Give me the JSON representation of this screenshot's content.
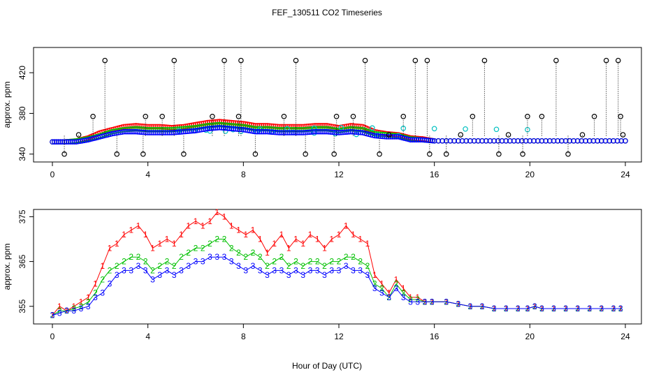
{
  "title": "FEF_130511  CO2 Timeseries",
  "xlabel": "Hour of Day (UTC)",
  "chart_data": [
    {
      "type": "scatter",
      "panel": "top",
      "ylabel": "approx. ppm",
      "xlim": [
        0,
        24
      ],
      "ylim": [
        335,
        440
      ],
      "xticks": [
        0,
        4,
        8,
        12,
        16,
        20,
        24
      ],
      "yticks": [
        340,
        380,
        420
      ],
      "grid": false,
      "colors": [
        "#ff0000",
        "#00c000",
        "#00c0c0",
        "#0000ff",
        "#000000"
      ],
      "series": [
        {
          "marker": "circle",
          "color": "#ff0000",
          "x": [
            0.0,
            0.5,
            1.0,
            1.5,
            2.0,
            2.5,
            3.0,
            3.5,
            4.0,
            4.5,
            5.0,
            5.5,
            6.0,
            6.5,
            7.0,
            7.5,
            8.0,
            8.5,
            9.0,
            9.5,
            10.0,
            10.5,
            11.0,
            11.5,
            12.0,
            12.5,
            13.0,
            13.5,
            14.0,
            14.5,
            15.0,
            15.5,
            16.0,
            17.0,
            18.0,
            19.0,
            20.0,
            21.0,
            22.0,
            23.0,
            24.0
          ],
          "y": [
            352,
            352,
            353,
            356,
            361,
            364,
            367,
            368,
            367,
            367,
            366,
            367,
            369,
            371,
            372,
            371,
            370,
            368,
            368,
            367,
            367,
            367,
            368,
            368,
            366,
            368,
            367,
            362,
            360,
            359,
            356,
            355,
            353,
            353,
            353,
            353,
            353,
            353,
            353,
            353,
            353
          ]
        },
        {
          "marker": "circle",
          "color": "#00c000",
          "x": [
            0.0,
            0.5,
            1.0,
            1.5,
            2.0,
            2.5,
            3.0,
            3.5,
            4.0,
            4.5,
            5.0,
            5.5,
            6.0,
            6.5,
            7.0,
            7.5,
            8.0,
            8.5,
            9.0,
            9.5,
            10.0,
            10.5,
            11.0,
            11.5,
            12.0,
            12.5,
            13.0,
            13.5,
            14.0,
            14.5,
            15.0,
            15.5,
            16.0,
            17.0,
            18.0,
            19.0,
            20.0,
            21.0,
            22.0,
            23.0,
            24.0
          ],
          "y": [
            352,
            352,
            353,
            355,
            358,
            362,
            364,
            365,
            364,
            364,
            364,
            365,
            366,
            368,
            369,
            368,
            367,
            365,
            365,
            364,
            364,
            364,
            365,
            365,
            363,
            365,
            364,
            360,
            359,
            358,
            355,
            354,
            353,
            353,
            353,
            353,
            353,
            353,
            353,
            353,
            353
          ]
        },
        {
          "marker": "circle",
          "color": "#00c0c0",
          "x": [
            19.9,
            12.1,
            5.3,
            9.2,
            14.5
          ],
          "y": [
            364,
            366,
            363,
            362,
            358
          ]
        },
        {
          "marker": "circle",
          "color": "#0000ff",
          "x": [
            0.0,
            0.5,
            1.0,
            1.5,
            2.0,
            2.5,
            3.0,
            3.5,
            4.0,
            4.5,
            5.0,
            5.5,
            6.0,
            6.5,
            7.0,
            7.5,
            8.0,
            8.5,
            9.0,
            9.5,
            10.0,
            10.5,
            11.0,
            11.5,
            12.0,
            12.5,
            13.0,
            13.5,
            14.0,
            14.5,
            15.0,
            15.5,
            16.0,
            17.0,
            18.0,
            19.0,
            20.0,
            21.0,
            22.0,
            23.0,
            24.0
          ],
          "y": [
            352,
            352,
            352,
            354,
            357,
            360,
            362,
            362,
            361,
            361,
            361,
            362,
            363,
            365,
            366,
            365,
            364,
            362,
            362,
            361,
            361,
            361,
            362,
            362,
            361,
            362,
            361,
            358,
            357,
            357,
            354,
            354,
            353,
            353,
            353,
            353,
            353,
            353,
            353,
            353,
            353
          ]
        },
        {
          "marker": "circle",
          "color": "#000000",
          "style": "spikes",
          "x": [
            0.5,
            1.1,
            1.7,
            2.2,
            2.7,
            3.8,
            3.9,
            4.6,
            5.1,
            5.5,
            6.7,
            7.2,
            7.8,
            7.9,
            8.5,
            9.7,
            10.2,
            10.6,
            11.8,
            11.9,
            12.6,
            13.1,
            13.7,
            14.1,
            14.7,
            15.2,
            15.7,
            15.8,
            16.5,
            17.1,
            17.6,
            18.1,
            18.7,
            19.1,
            19.7,
            19.9,
            20.5,
            21.1,
            21.6,
            22.2,
            22.7,
            23.2,
            23.7,
            23.8,
            23.9
          ],
          "y": [
            340,
            359,
            377,
            432,
            340,
            340,
            377,
            377,
            432,
            340,
            377,
            432,
            377,
            432,
            340,
            377,
            432,
            340,
            340,
            377,
            377,
            432,
            340,
            359,
            377,
            432,
            432,
            340,
            340,
            359,
            377,
            432,
            340,
            359,
            340,
            377,
            377,
            432,
            340,
            359,
            377,
            432,
            432,
            377,
            359
          ]
        }
      ]
    },
    {
      "type": "scatter",
      "panel": "bottom",
      "ylabel": "approx. ppm",
      "xlim": [
        0,
        24
      ],
      "ylim": [
        352,
        376
      ],
      "xticks": [
        0,
        4,
        8,
        12,
        16,
        20,
        24
      ],
      "yticks": [
        355,
        365,
        375
      ],
      "grid": false,
      "colors": [
        "#ff0000",
        "#00c000",
        "#0000ff"
      ],
      "series": [
        {
          "marker": "1",
          "color": "#ff0000",
          "x": [
            0.0,
            0.3,
            0.6,
            0.9,
            1.2,
            1.5,
            1.8,
            2.1,
            2.4,
            2.7,
            3.0,
            3.3,
            3.6,
            3.9,
            4.2,
            4.5,
            4.8,
            5.1,
            5.4,
            5.7,
            6.0,
            6.3,
            6.6,
            6.9,
            7.2,
            7.5,
            7.8,
            8.1,
            8.4,
            8.7,
            9.0,
            9.3,
            9.6,
            9.9,
            10.2,
            10.5,
            10.8,
            11.1,
            11.4,
            11.7,
            12.0,
            12.3,
            12.6,
            12.9,
            13.2,
            13.5,
            13.8,
            14.1,
            14.4,
            14.7,
            15.0,
            15.3,
            15.6,
            15.9,
            16.5,
            17.0,
            17.5,
            18.0,
            18.5,
            19.0,
            19.5,
            19.9,
            20.2,
            20.5,
            21.0,
            21.5,
            22.0,
            22.5,
            23.0,
            23.5,
            23.8
          ],
          "y": [
            353,
            355,
            354,
            355,
            356,
            357,
            360,
            364,
            368,
            369,
            371,
            372,
            373,
            371,
            368,
            369,
            370,
            369,
            371,
            373,
            374,
            373,
            374,
            376,
            375,
            373,
            372,
            371,
            372,
            370,
            367,
            369,
            371,
            368,
            370,
            369,
            371,
            370,
            368,
            370,
            371,
            373,
            371,
            370,
            369,
            362,
            360,
            358,
            361,
            359,
            357,
            357,
            356,
            356,
            356,
            355.5,
            355,
            355,
            354.5,
            354.5,
            354.5,
            354.5,
            355,
            354.5,
            354.5,
            354.5,
            354.5,
            354.5,
            354.5,
            354.5,
            354.5
          ]
        },
        {
          "marker": "2",
          "color": "#00c000",
          "x": [
            0.0,
            0.3,
            0.6,
            0.9,
            1.2,
            1.5,
            1.8,
            2.1,
            2.4,
            2.7,
            3.0,
            3.3,
            3.6,
            3.9,
            4.2,
            4.5,
            4.8,
            5.1,
            5.4,
            5.7,
            6.0,
            6.3,
            6.6,
            6.9,
            7.2,
            7.5,
            7.8,
            8.1,
            8.4,
            8.7,
            9.0,
            9.3,
            9.6,
            9.9,
            10.2,
            10.5,
            10.8,
            11.1,
            11.4,
            11.7,
            12.0,
            12.3,
            12.6,
            12.9,
            13.2,
            13.5,
            13.8,
            14.1,
            14.4,
            14.7,
            15.0,
            15.3,
            15.6,
            15.9,
            16.5,
            17.0,
            17.5,
            18.0,
            18.5,
            19.0,
            19.5,
            19.9,
            20.2,
            20.5,
            21.0,
            21.5,
            22.0,
            22.5,
            23.0,
            23.5,
            23.8
          ],
          "y": [
            353,
            354,
            354,
            354.5,
            355,
            356,
            358,
            361,
            363,
            364,
            365,
            366,
            366,
            365,
            363,
            364,
            365,
            364,
            366,
            367,
            368,
            368,
            369,
            370,
            370,
            368,
            367,
            366,
            367,
            366,
            364,
            365,
            366,
            364,
            365,
            364,
            365,
            365,
            364,
            365,
            365,
            366,
            366,
            365,
            364,
            360,
            359,
            357,
            360,
            358,
            356.5,
            356.5,
            356,
            356,
            356,
            355.5,
            355,
            355,
            354.5,
            354.5,
            354.5,
            354.5,
            355,
            354.5,
            354.5,
            354.5,
            354.5,
            354.5,
            354.5,
            354.5,
            354.5
          ]
        },
        {
          "marker": "3",
          "color": "#0000ff",
          "x": [
            0.0,
            0.3,
            0.6,
            0.9,
            1.2,
            1.5,
            1.8,
            2.1,
            2.4,
            2.7,
            3.0,
            3.3,
            3.6,
            3.9,
            4.2,
            4.5,
            4.8,
            5.1,
            5.4,
            5.7,
            6.0,
            6.3,
            6.6,
            6.9,
            7.2,
            7.5,
            7.8,
            8.1,
            8.4,
            8.7,
            9.0,
            9.3,
            9.6,
            9.9,
            10.2,
            10.5,
            10.8,
            11.1,
            11.4,
            11.7,
            12.0,
            12.3,
            12.6,
            12.9,
            13.2,
            13.5,
            13.8,
            14.1,
            14.4,
            14.7,
            15.0,
            15.3,
            15.6,
            15.9,
            16.5,
            17.0,
            17.5,
            18.0,
            18.5,
            19.0,
            19.5,
            19.9,
            20.2,
            20.5,
            21.0,
            21.5,
            22.0,
            22.5,
            23.0,
            23.5,
            23.8
          ],
          "y": [
            353,
            353.5,
            354,
            354,
            354.5,
            355,
            357,
            358,
            360,
            362,
            363,
            363,
            364,
            363,
            361,
            362,
            363,
            362,
            363,
            364,
            365,
            365,
            366,
            366,
            366,
            365,
            364,
            363,
            364,
            363,
            362,
            363,
            363,
            362,
            363,
            362,
            363,
            363,
            362,
            363,
            363,
            364,
            363,
            363,
            362,
            359,
            358,
            357,
            359,
            357,
            356,
            356,
            356,
            356,
            356,
            355.5,
            355,
            355,
            354.5,
            354.5,
            354.5,
            354.5,
            355,
            354.5,
            354.5,
            354.5,
            354.5,
            354.5,
            354.5,
            354.5,
            354.5
          ]
        }
      ]
    }
  ]
}
